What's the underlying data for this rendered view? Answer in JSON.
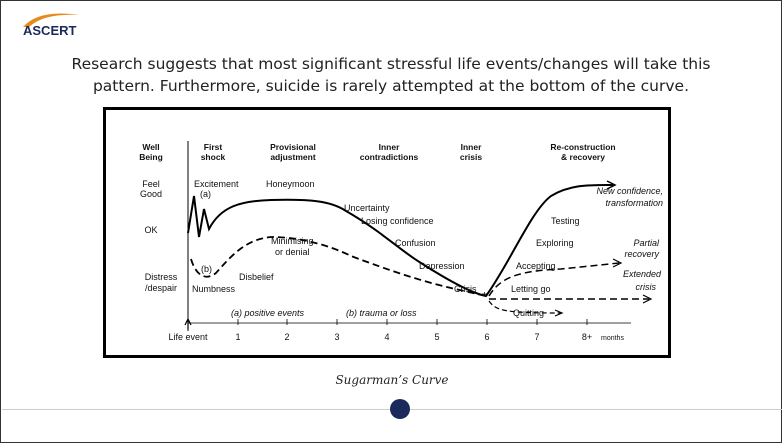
{
  "logo": "ASCERT",
  "intro": "Research suggests that most significant stressful life events/changes will take this pattern. Furthermore, suicide is rarely attempted at the bottom of the curve.",
  "figure": {
    "headers": [
      [
        "Well",
        "Being"
      ],
      [
        "First",
        "shock"
      ],
      [
        "Provisional",
        "adjustment"
      ],
      [
        "Inner",
        "contradictions"
      ],
      [
        "Inner",
        "crisis"
      ],
      [
        "Re-construction",
        "& recovery"
      ]
    ],
    "rows": [
      [
        "Feel",
        "Good"
      ],
      [
        "OK"
      ],
      [
        "Distress",
        "/despair"
      ]
    ],
    "labels": {
      "excitement": "Excitement",
      "a": "(a)",
      "honeymoon": "Honeymoon",
      "uncertainty": "Uncertainty",
      "losing": "Losing confidence",
      "confusion": "Confusion",
      "depression": "Depression",
      "crisis": "Crisis",
      "minimising": [
        "Minimising",
        "or denial"
      ],
      "b": "(b)",
      "disbelief": "Disbelief",
      "numbness": "Numbness",
      "testing": "Testing",
      "exploring": "Exploring",
      "accepting": "Accepting",
      "letting": "Letting go",
      "quitting": "Quitting",
      "star": "*",
      "new": [
        "New confidence,",
        "transformation"
      ],
      "partial": [
        "Partial",
        "recovery"
      ],
      "extended": [
        "Extended",
        "crisis"
      ],
      "positive": "(a) positive events",
      "trauma": "(b) trauma or loss"
    },
    "axis": {
      "start": "Life event",
      "ticks": [
        "1",
        "2",
        "3",
        "4",
        "5",
        "6",
        "7",
        "8+"
      ],
      "unit": "months"
    }
  },
  "caption": "Sugarman’s Curve"
}
